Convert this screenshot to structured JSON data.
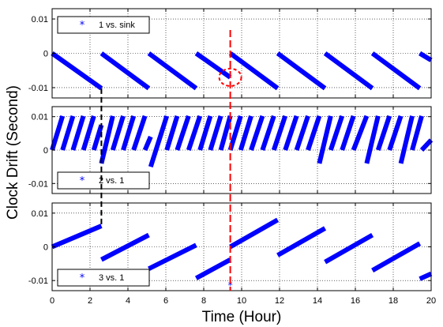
{
  "figure": {
    "xlabel": "Time (Hour)",
    "ylabel": "Clock Drift (Second)"
  },
  "colors": {
    "series": "#0000ff",
    "marker_line": "#000000",
    "event_line": "#ff0000",
    "highlight_circle": "#ff0000"
  },
  "chart_data": [
    {
      "type": "scatter",
      "series": [
        {
          "name": "1 vs. sink",
          "marker": "*",
          "segments": [
            {
              "x": [
                0.0,
                2.6
              ],
              "y": [
                0.0,
                -0.0102
              ]
            },
            {
              "x": [
                2.6,
                5.1
              ],
              "y": [
                0.0,
                -0.0102
              ]
            },
            {
              "x": [
                5.1,
                7.6
              ],
              "y": [
                0.0,
                -0.0102
              ]
            },
            {
              "x": [
                7.6,
                9.4
              ],
              "y": [
                0.0,
                -0.007
              ]
            },
            {
              "x": [
                9.4,
                11.9
              ],
              "y": [
                0.0,
                -0.0102
              ]
            },
            {
              "x": [
                11.9,
                14.4
              ],
              "y": [
                0.0,
                -0.0102
              ]
            },
            {
              "x": [
                14.4,
                16.9
              ],
              "y": [
                0.0,
                -0.0102
              ]
            },
            {
              "x": [
                16.9,
                19.4
              ],
              "y": [
                0.0,
                -0.0102
              ]
            },
            {
              "x": [
                19.4,
                20.0
              ],
              "y": [
                0.0,
                -0.002
              ]
            }
          ]
        }
      ],
      "xlim": [
        0,
        20
      ],
      "ylim": [
        -0.013,
        0.013
      ],
      "xticks": [
        0,
        2,
        4,
        6,
        8,
        10,
        12,
        14,
        16,
        18,
        20
      ],
      "xtick_labels": [],
      "yticks": [
        0.01,
        0,
        -0.01
      ],
      "ytick_labels": [
        "0.01",
        "0",
        "-0.01"
      ],
      "grid": true,
      "legend": "top-left"
    },
    {
      "type": "scatter",
      "series": [
        {
          "name": "2 vs. 1",
          "marker": "*",
          "segments": [
            {
              "x": [
                0.0,
                0.55
              ],
              "y": [
                0.0,
                0.0102
              ]
            },
            {
              "x": [
                0.55,
                1.1
              ],
              "y": [
                0.0,
                0.0102
              ]
            },
            {
              "x": [
                1.1,
                1.65
              ],
              "y": [
                0.0,
                0.0102
              ]
            },
            {
              "x": [
                1.65,
                2.2
              ],
              "y": [
                0.0,
                0.0102
              ]
            },
            {
              "x": [
                2.2,
                2.6
              ],
              "y": [
                0.0,
                0.0075
              ]
            },
            {
              "x": [
                2.6,
                3.2
              ],
              "y": [
                -0.004,
                0.0102
              ]
            },
            {
              "x": [
                3.2,
                3.75
              ],
              "y": [
                0.0,
                0.0102
              ]
            },
            {
              "x": [
                3.75,
                4.3
              ],
              "y": [
                0.0,
                0.0102
              ]
            },
            {
              "x": [
                4.3,
                4.9
              ],
              "y": [
                0.0,
                0.0102
              ]
            },
            {
              "x": [
                4.9,
                5.2
              ],
              "y": [
                0.0,
                0.004
              ]
            },
            {
              "x": [
                5.2,
                6.05
              ],
              "y": [
                -0.005,
                0.0102
              ]
            },
            {
              "x": [
                6.05,
                6.6
              ],
              "y": [
                0.0,
                0.0102
              ]
            },
            {
              "x": [
                6.6,
                7.2
              ],
              "y": [
                0.0,
                0.0102
              ]
            },
            {
              "x": [
                7.2,
                7.8
              ],
              "y": [
                0.0,
                0.0102
              ]
            },
            {
              "x": [
                7.8,
                8.35
              ],
              "y": [
                0.0,
                0.0102
              ]
            },
            {
              "x": [
                8.35,
                8.9
              ],
              "y": [
                0.0,
                0.0102
              ]
            },
            {
              "x": [
                8.9,
                9.4
              ],
              "y": [
                0.0,
                0.0102
              ]
            },
            {
              "x": [
                9.4,
                9.95
              ],
              "y": [
                0.0,
                0.0102
              ]
            },
            {
              "x": [
                9.95,
                10.5
              ],
              "y": [
                0.0,
                0.0102
              ]
            },
            {
              "x": [
                10.5,
                11.1
              ],
              "y": [
                0.0,
                0.0102
              ]
            },
            {
              "x": [
                11.1,
                11.7
              ],
              "y": [
                0.0,
                0.0102
              ]
            },
            {
              "x": [
                11.7,
                12.3
              ],
              "y": [
                0.0,
                0.0102
              ]
            },
            {
              "x": [
                12.3,
                12.9
              ],
              "y": [
                0.0,
                0.0102
              ]
            },
            {
              "x": [
                12.9,
                13.5
              ],
              "y": [
                0.0,
                0.0102
              ]
            },
            {
              "x": [
                13.5,
                14.1
              ],
              "y": [
                0.0,
                0.0102
              ]
            },
            {
              "x": [
                14.1,
                14.7
              ],
              "y": [
                -0.004,
                0.0102
              ]
            },
            {
              "x": [
                14.7,
                15.3
              ],
              "y": [
                0.0,
                0.0102
              ]
            },
            {
              "x": [
                15.3,
                15.9
              ],
              "y": [
                0.0,
                0.0102
              ]
            },
            {
              "x": [
                15.9,
                16.6
              ],
              "y": [
                0.0,
                0.0102
              ]
            },
            {
              "x": [
                16.6,
                17.2
              ],
              "y": [
                -0.004,
                0.0102
              ]
            },
            {
              "x": [
                17.2,
                17.8
              ],
              "y": [
                0.0,
                0.0102
              ]
            },
            {
              "x": [
                17.8,
                18.4
              ],
              "y": [
                0.0,
                0.0102
              ]
            },
            {
              "x": [
                18.4,
                19.0
              ],
              "y": [
                -0.004,
                0.0102
              ]
            },
            {
              "x": [
                19.0,
                19.5
              ],
              "y": [
                0.0,
                0.0102
              ]
            },
            {
              "x": [
                19.5,
                20.0
              ],
              "y": [
                0.0,
                0.003
              ]
            }
          ]
        }
      ],
      "xlim": [
        0,
        20
      ],
      "ylim": [
        -0.013,
        0.013
      ],
      "xticks": [
        0,
        2,
        4,
        6,
        8,
        10,
        12,
        14,
        16,
        18,
        20
      ],
      "xtick_labels": [],
      "yticks": [
        0.01,
        0,
        -0.01
      ],
      "ytick_labels": [
        "0.01",
        "0",
        "-0.01"
      ],
      "grid": true,
      "legend": "bottom-left"
    },
    {
      "type": "scatter",
      "series": [
        {
          "name": "3 vs. 1",
          "marker": "*",
          "segments": [
            {
              "x": [
                0.0,
                2.6
              ],
              "y": [
                0.0,
                0.0062
              ]
            },
            {
              "x": [
                2.6,
                5.1
              ],
              "y": [
                -0.0038,
                0.0035
              ]
            },
            {
              "x": [
                5.1,
                7.6
              ],
              "y": [
                -0.0065,
                0.0005
              ]
            },
            {
              "x": [
                7.6,
                9.4
              ],
              "y": [
                -0.0093,
                -0.0038
              ]
            },
            {
              "x": [
                9.4,
                11.9
              ],
              "y": [
                0.0,
                0.008
              ]
            },
            {
              "x": [
                11.9,
                14.4
              ],
              "y": [
                -0.0025,
                0.0055
              ]
            },
            {
              "x": [
                14.4,
                16.9
              ],
              "y": [
                -0.0045,
                0.0035
              ]
            },
            {
              "x": [
                16.9,
                19.4
              ],
              "y": [
                -0.007,
                0.001
              ]
            },
            {
              "x": [
                19.4,
                20.0
              ],
              "y": [
                -0.0095,
                -0.008
              ]
            }
          ],
          "outliers": [
            {
              "x": 9.4,
              "y": -0.0115
            }
          ]
        }
      ],
      "xlim": [
        0,
        20
      ],
      "ylim": [
        -0.013,
        0.013
      ],
      "xticks": [
        0,
        2,
        4,
        6,
        8,
        10,
        12,
        14,
        16,
        18,
        20
      ],
      "xtick_labels": [
        "0",
        "2",
        "4",
        "6",
        "8",
        "10",
        "12",
        "14",
        "16",
        "18",
        "20"
      ],
      "yticks": [
        0.01,
        0,
        -0.01
      ],
      "ytick_labels": [
        "0.01",
        "0",
        "-0.01"
      ],
      "grid": true,
      "legend": "bottom-left"
    }
  ],
  "annotations": {
    "black_dashed_vline": {
      "x": 2.6,
      "y_from": -0.0102,
      "y_to": 0.0062,
      "style": "dashed"
    },
    "red_dashed_vline": {
      "x": 9.4,
      "style": "dashed"
    },
    "red_circle": {
      "x": 9.4,
      "y": -0.007,
      "style": "dashed",
      "panel": 0
    }
  }
}
